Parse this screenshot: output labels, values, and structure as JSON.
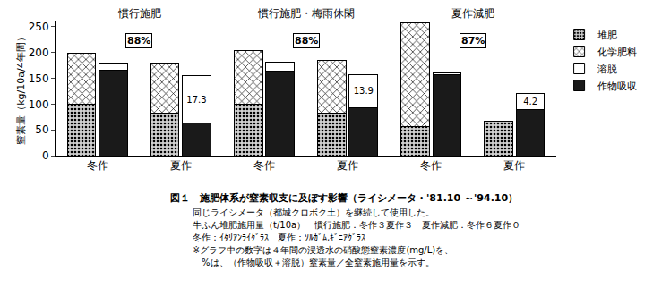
{
  "chart_data": {
    "type": "bar",
    "stacked": true,
    "title": "図１　施肥体系が窒素収支に及ぼす影響（ライシメータ・'81.10 ～'94.10）",
    "notes": [
      "同じライシメータ（都城クロボク土）を継続して使用した。",
      "牛ふん堆肥施用量（t/10a）　慣行施肥：冬作３夏作３　夏作減肥：冬作６夏作０",
      "冬作：ｲﾀﾘｱﾝﾗｲｸﾞﾗｽ　夏作：ｿﾙｶﾞﾑ,ｷﾞﾆｱｸﾞﾗｽ",
      "※グラフ中の数字は４年間の浸透水の硝酸態窒素濃度(mg/L)を、",
      "　%は、（作物吸収＋溶脱）窒素量／全窒素施用量を示す。"
    ],
    "y_label": "窒素量（kg/10a/4年間）",
    "ylim": [
      0,
      260
    ],
    "yticks": [
      0,
      50,
      100,
      150,
      200,
      250
    ],
    "grid": false,
    "legend": "right",
    "categories": [
      "冬作",
      "夏作",
      "冬作",
      "夏作",
      "冬作",
      "夏作"
    ],
    "groups": [
      "慣行施肥",
      "慣行施肥・梅雨休閑",
      "夏作減肥"
    ],
    "group_percent": {
      "values": [
        88,
        88,
        87
      ],
      "value_labels": [
        "88%",
        "88%",
        "87%"
      ],
      "y": 222
    },
    "bars": [
      {
        "series": [
          {
            "name": "堆肥",
            "color": "#d0d0d0",
            "marker": "dotted",
            "values": [
              100,
              82,
              100,
              82,
              57,
              67
            ]
          },
          {
            "name": "化学肥料",
            "color": "#ffffff",
            "marker": "hatched",
            "values": [
              98,
              98,
              103,
              103,
              201,
              0
            ]
          }
        ]
      },
      {
        "series": [
          {
            "name": "作物吸収",
            "color": "#1a1a1a",
            "marker": "solid",
            "values": [
              165,
              63,
              163,
              93,
              157,
              90
            ]
          },
          {
            "name": "溶脱",
            "color": "#ffffff",
            "marker": "solid",
            "values": [
              15,
              92,
              19,
              64,
              3,
              30
            ],
            "nitrate_mg_per_L": [
              null,
              17.3,
              null,
              13.9,
              null,
              4.2
            ]
          }
        ]
      }
    ]
  }
}
